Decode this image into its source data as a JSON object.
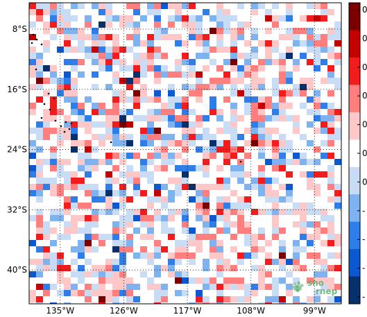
{
  "map": {
    "title": "",
    "lat_labels": [
      "8°S",
      "16°S",
      "24°S",
      "32°S",
      "40°S"
    ],
    "lat_values": [
      -8,
      -16,
      -24,
      -32,
      -40
    ],
    "lon_labels": [
      "135°W",
      "126°W",
      "117°W",
      "108°W",
      "99°W"
    ],
    "lon_values": [
      -135,
      -126,
      -117,
      -108,
      -99
    ],
    "lat_range": [
      -44.5,
      -4.5
    ],
    "lon_range": [
      -139.4,
      -95.2
    ],
    "grid": "dotted",
    "colorscale": {
      "type": "diverging",
      "colors": [
        "#08306b",
        "#0b58d1",
        "#2f7de8",
        "#7fb3f0",
        "#c8dcf6",
        "#ffffff",
        "#ffc8c8",
        "#ff7f7f",
        "#f21c1c",
        "#c40000",
        "#7a0000"
      ],
      "tick_count": 11,
      "tick_labels": [
        "0",
        "0",
        "0",
        "0",
        "0",
        "0",
        "0",
        "-",
        "-",
        "-",
        "-"
      ]
    },
    "watermark": {
      "text_top": "sho",
      "text_bottom": "rnep",
      "color": "#5cae6e"
    }
  }
}
